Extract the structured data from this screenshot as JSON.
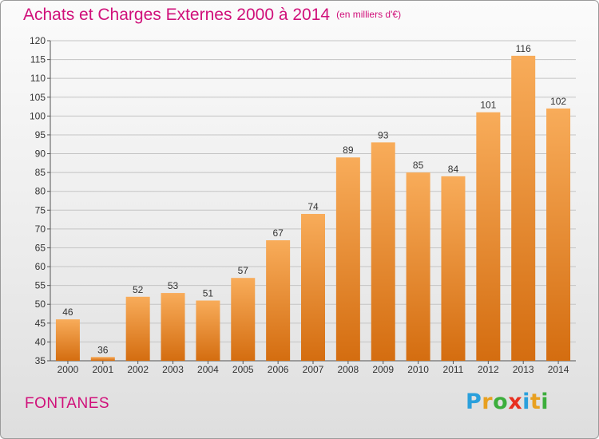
{
  "header": {
    "title": "Achats et Charges Externes 2000 à 2014",
    "unit": "(en milliers d'€)"
  },
  "footer": {
    "city": "FONTANES",
    "logo_letters": [
      "P",
      "r",
      "o",
      "x",
      "i",
      "t",
      "i"
    ],
    "logo_colors": [
      "#2aa0dc",
      "#e8a020",
      "#3cae3c",
      "#e83020",
      "#2aa0dc",
      "#e8a020",
      "#3cae3c"
    ]
  },
  "colors": {
    "title": "#d0107a",
    "bar_light": "#f8ac5a",
    "bar_dark": "#d46d10",
    "grid": "#c4c4c4"
  },
  "chart_data": {
    "type": "bar",
    "title": "Achats et Charges Externes 2000 à 2014",
    "subtitle": "(en milliers d'€)",
    "categories": [
      "2000",
      "2001",
      "2002",
      "2003",
      "2004",
      "2005",
      "2006",
      "2007",
      "2008",
      "2009",
      "2010",
      "2011",
      "2012",
      "2013",
      "2014"
    ],
    "values": [
      46,
      36,
      52,
      53,
      51,
      57,
      67,
      74,
      89,
      93,
      85,
      84,
      101,
      116,
      102
    ],
    "ylim": [
      35,
      120
    ],
    "yticks": [
      35,
      40,
      45,
      50,
      55,
      60,
      65,
      70,
      75,
      80,
      85,
      90,
      95,
      100,
      105,
      110,
      115,
      120
    ],
    "grid": true,
    "xlabel": "",
    "ylabel": ""
  }
}
